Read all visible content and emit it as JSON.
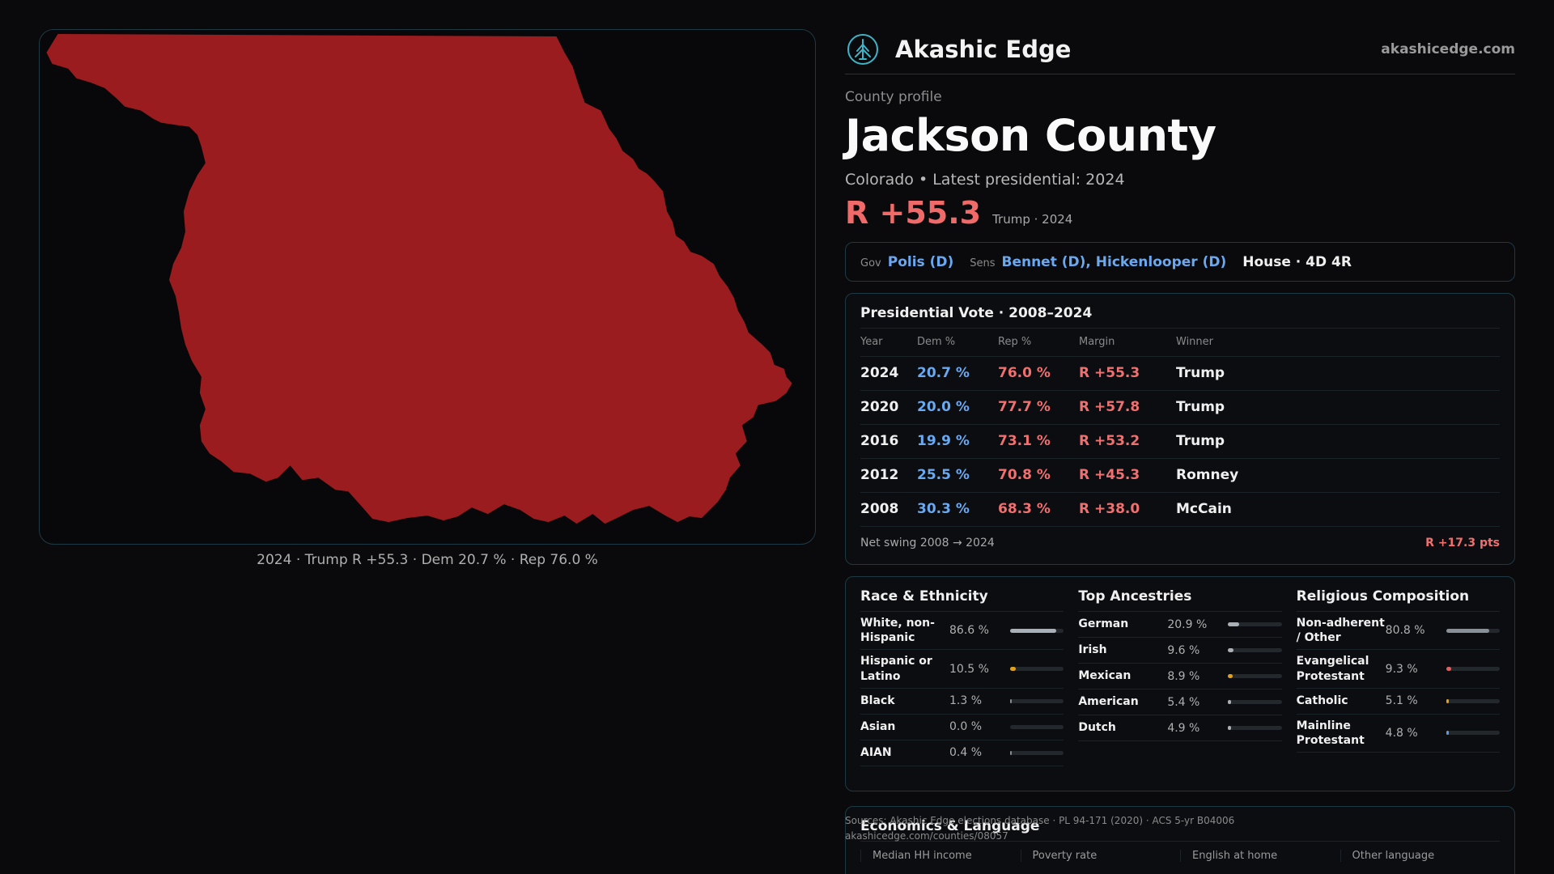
{
  "map": {
    "county_color": "#9b1c1f",
    "caption": "2024 · Trump R +55.3 · Dem 20.7 % · Rep 76.0 %"
  },
  "brand": {
    "name": "Akashic Edge",
    "url": "akashicedge.com",
    "logo_icon": "tree-icon"
  },
  "profile": {
    "eyebrow": "County profile",
    "title": "Jackson County",
    "subtitle": "Colorado • Latest presidential: 2024",
    "margin": "R +55.3",
    "margin_note": "Trump · 2024"
  },
  "officials": {
    "gov_label": "Gov",
    "gov": "Polis (D)",
    "sens_label": "Sens",
    "sens": "Bennet (D), Hickenlooper (D)",
    "house": "House · 4D 4R"
  },
  "presidential": {
    "title": "Presidential Vote · 2008–2024",
    "headers": {
      "year": "Year",
      "dem": "Dem %",
      "rep": "Rep %",
      "margin": "Margin",
      "winner": "Winner"
    },
    "rows": [
      {
        "year": "2024",
        "dem": "20.7 %",
        "rep": "76.0 %",
        "margin": "R +55.3",
        "winner": "Trump"
      },
      {
        "year": "2020",
        "dem": "20.0 %",
        "rep": "77.7 %",
        "margin": "R +57.8",
        "winner": "Trump"
      },
      {
        "year": "2016",
        "dem": "19.9 %",
        "rep": "73.1 %",
        "margin": "R +53.2",
        "winner": "Trump"
      },
      {
        "year": "2012",
        "dem": "25.5 %",
        "rep": "70.8 %",
        "margin": "R +45.3",
        "winner": "Romney"
      },
      {
        "year": "2008",
        "dem": "30.3 %",
        "rep": "68.3 %",
        "margin": "R +38.0",
        "winner": "McCain"
      }
    ],
    "swing_label": "Net swing 2008 → 2024",
    "swing_value": "R +17.3 pts"
  },
  "race": {
    "title": "Race & Ethnicity",
    "items": [
      {
        "label": "White, non-Hispanic",
        "value": "86.6 %",
        "pct": 86.6,
        "color": "#aab0b8"
      },
      {
        "label": "Hispanic or Latino",
        "value": "10.5 %",
        "pct": 10.5,
        "color": "#e0a020"
      },
      {
        "label": "Black",
        "value": "1.3 %",
        "pct": 1.3,
        "color": "#8a8a8a"
      },
      {
        "label": "Asian",
        "value": "0.0 %",
        "pct": 0.0,
        "color": "#8a8a8a"
      },
      {
        "label": "AIAN",
        "value": "0.4 %",
        "pct": 0.4,
        "color": "#8a8a8a"
      }
    ]
  },
  "ancestry": {
    "title": "Top Ancestries",
    "items": [
      {
        "label": "German",
        "value": "20.9 %",
        "pct": 20.9,
        "color": "#aab0b8"
      },
      {
        "label": "Irish",
        "value": "9.6 %",
        "pct": 9.6,
        "color": "#aab0b8"
      },
      {
        "label": "Mexican",
        "value": "8.9 %",
        "pct": 8.9,
        "color": "#e0a020"
      },
      {
        "label": "American",
        "value": "5.4 %",
        "pct": 5.4,
        "color": "#aab0b8"
      },
      {
        "label": "Dutch",
        "value": "4.9 %",
        "pct": 4.9,
        "color": "#aab0b8"
      }
    ]
  },
  "religion": {
    "title": "Religious Composition",
    "items": [
      {
        "label": "Non-adherent / Other",
        "value": "80.8 %",
        "pct": 80.8,
        "color": "#8a9098"
      },
      {
        "label": "Evangelical Protestant",
        "value": "9.3 %",
        "pct": 9.3,
        "color": "#e06060"
      },
      {
        "label": "Catholic",
        "value": "5.1 %",
        "pct": 5.1,
        "color": "#e0a020"
      },
      {
        "label": "Mainline Protestant",
        "value": "4.8 %",
        "pct": 4.8,
        "color": "#5a9ae0"
      }
    ]
  },
  "economics": {
    "title": "Economics & Language",
    "cols": [
      "Median HH income",
      "Poverty rate",
      "English at home",
      "Other language"
    ]
  },
  "sources": {
    "line1": "Sources: Akashic Edge elections database · PL 94-171 (2020) · ACS 5-yr B04006",
    "line2": "akashicedge.com/counties/08057"
  }
}
